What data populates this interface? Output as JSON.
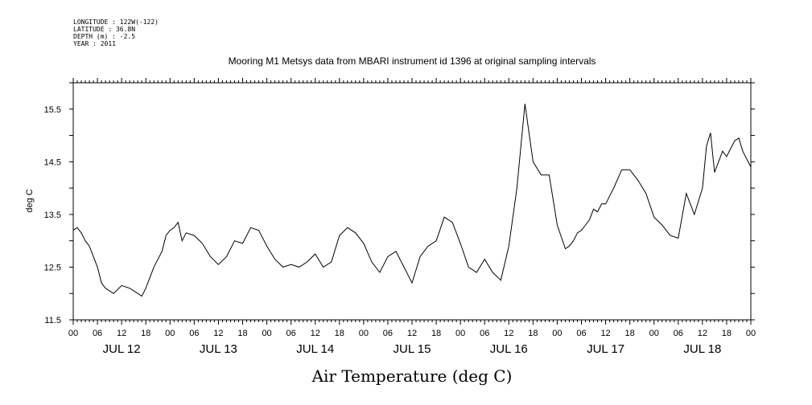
{
  "header": {
    "longitude": "LONGITUDE : 122W(-122)",
    "latitude": "LATITUDE : 36.8N",
    "depth": "DEPTH (m) : -2.5",
    "year": "YEAR : 2011"
  },
  "chart_data": {
    "type": "line",
    "title": "Mooring M1 Metsys data from MBARI instrument id 1396 at original sampling intervals",
    "xlabel": "Air Temperature (deg C)",
    "ylabel": "deg C",
    "ylim": [
      11.5,
      16.0
    ],
    "xlim": [
      0,
      168
    ],
    "x_unit": "hours since 00 JUL 12 2011",
    "grid": false,
    "y_ticks": [
      {
        "value": 11.5,
        "label": "11.5"
      },
      {
        "value": 12.5,
        "label": "12.5"
      },
      {
        "value": 13.5,
        "label": "13.5"
      },
      {
        "value": 14.5,
        "label": "14.5"
      },
      {
        "value": 15.5,
        "label": "15.5"
      }
    ],
    "x_hour_labels": [
      "00",
      "06",
      "12",
      "18",
      "00",
      "06",
      "12",
      "18",
      "00",
      "06",
      "12",
      "18",
      "00",
      "06",
      "12",
      "18",
      "00",
      "06",
      "12",
      "18",
      "00",
      "06",
      "12",
      "18",
      "00",
      "06",
      "12",
      "18",
      "00"
    ],
    "x_day_labels": [
      "JUL 12",
      "JUL 13",
      "JUL 14",
      "JUL 15",
      "JUL 16",
      "JUL 17",
      "JUL 18"
    ],
    "series": [
      {
        "x": [
          0,
          1,
          2,
          3,
          4,
          6,
          7,
          8,
          9,
          10,
          12,
          14,
          16,
          17,
          18,
          19,
          20,
          22,
          23,
          24,
          25,
          26,
          27,
          28,
          30,
          32,
          34,
          36,
          38,
          40,
          42,
          44,
          46,
          48,
          50,
          52,
          54,
          56,
          58,
          60,
          62,
          64,
          66,
          68,
          70,
          72,
          74,
          76,
          78,
          80,
          82,
          84,
          86,
          88,
          90,
          92,
          94,
          96,
          98,
          100,
          102,
          104,
          106,
          108,
          110,
          112,
          114,
          116,
          118,
          120,
          122,
          123,
          124,
          125,
          126,
          127,
          128,
          129,
          130,
          131,
          132,
          134,
          136,
          138,
          140,
          142,
          144,
          146,
          148,
          150,
          152,
          154,
          156,
          157,
          158,
          159,
          160,
          161,
          162,
          163,
          164,
          165,
          166,
          167,
          168
        ],
        "values": [
          13.2,
          13.25,
          13.15,
          13.0,
          12.9,
          12.5,
          12.2,
          12.1,
          12.05,
          12.0,
          12.15,
          12.1,
          12.0,
          11.95,
          12.1,
          12.3,
          12.5,
          12.8,
          13.1,
          13.2,
          13.25,
          13.35,
          13.0,
          13.15,
          13.1,
          12.95,
          12.7,
          12.55,
          12.7,
          13.0,
          12.95,
          13.25,
          13.2,
          12.9,
          12.65,
          12.5,
          12.55,
          12.5,
          12.6,
          12.75,
          12.5,
          12.6,
          13.1,
          13.25,
          13.15,
          12.95,
          12.6,
          12.4,
          12.7,
          12.8,
          12.5,
          12.2,
          12.7,
          12.9,
          13.0,
          13.45,
          13.35,
          12.95,
          12.5,
          12.4,
          12.65,
          12.4,
          12.25,
          12.9,
          14.0,
          15.6,
          14.5,
          14.25,
          14.25,
          13.3,
          12.85,
          12.9,
          13.0,
          13.15,
          13.2,
          13.3,
          13.4,
          13.6,
          13.55,
          13.7,
          13.7,
          14.0,
          14.35,
          14.35,
          14.15,
          13.9,
          13.45,
          13.3,
          13.1,
          13.05,
          13.9,
          13.5,
          14.0,
          14.8,
          15.05,
          14.3,
          14.5,
          14.7,
          14.6,
          14.75,
          14.9,
          14.95,
          14.7,
          14.55,
          14.4
        ]
      }
    ]
  }
}
